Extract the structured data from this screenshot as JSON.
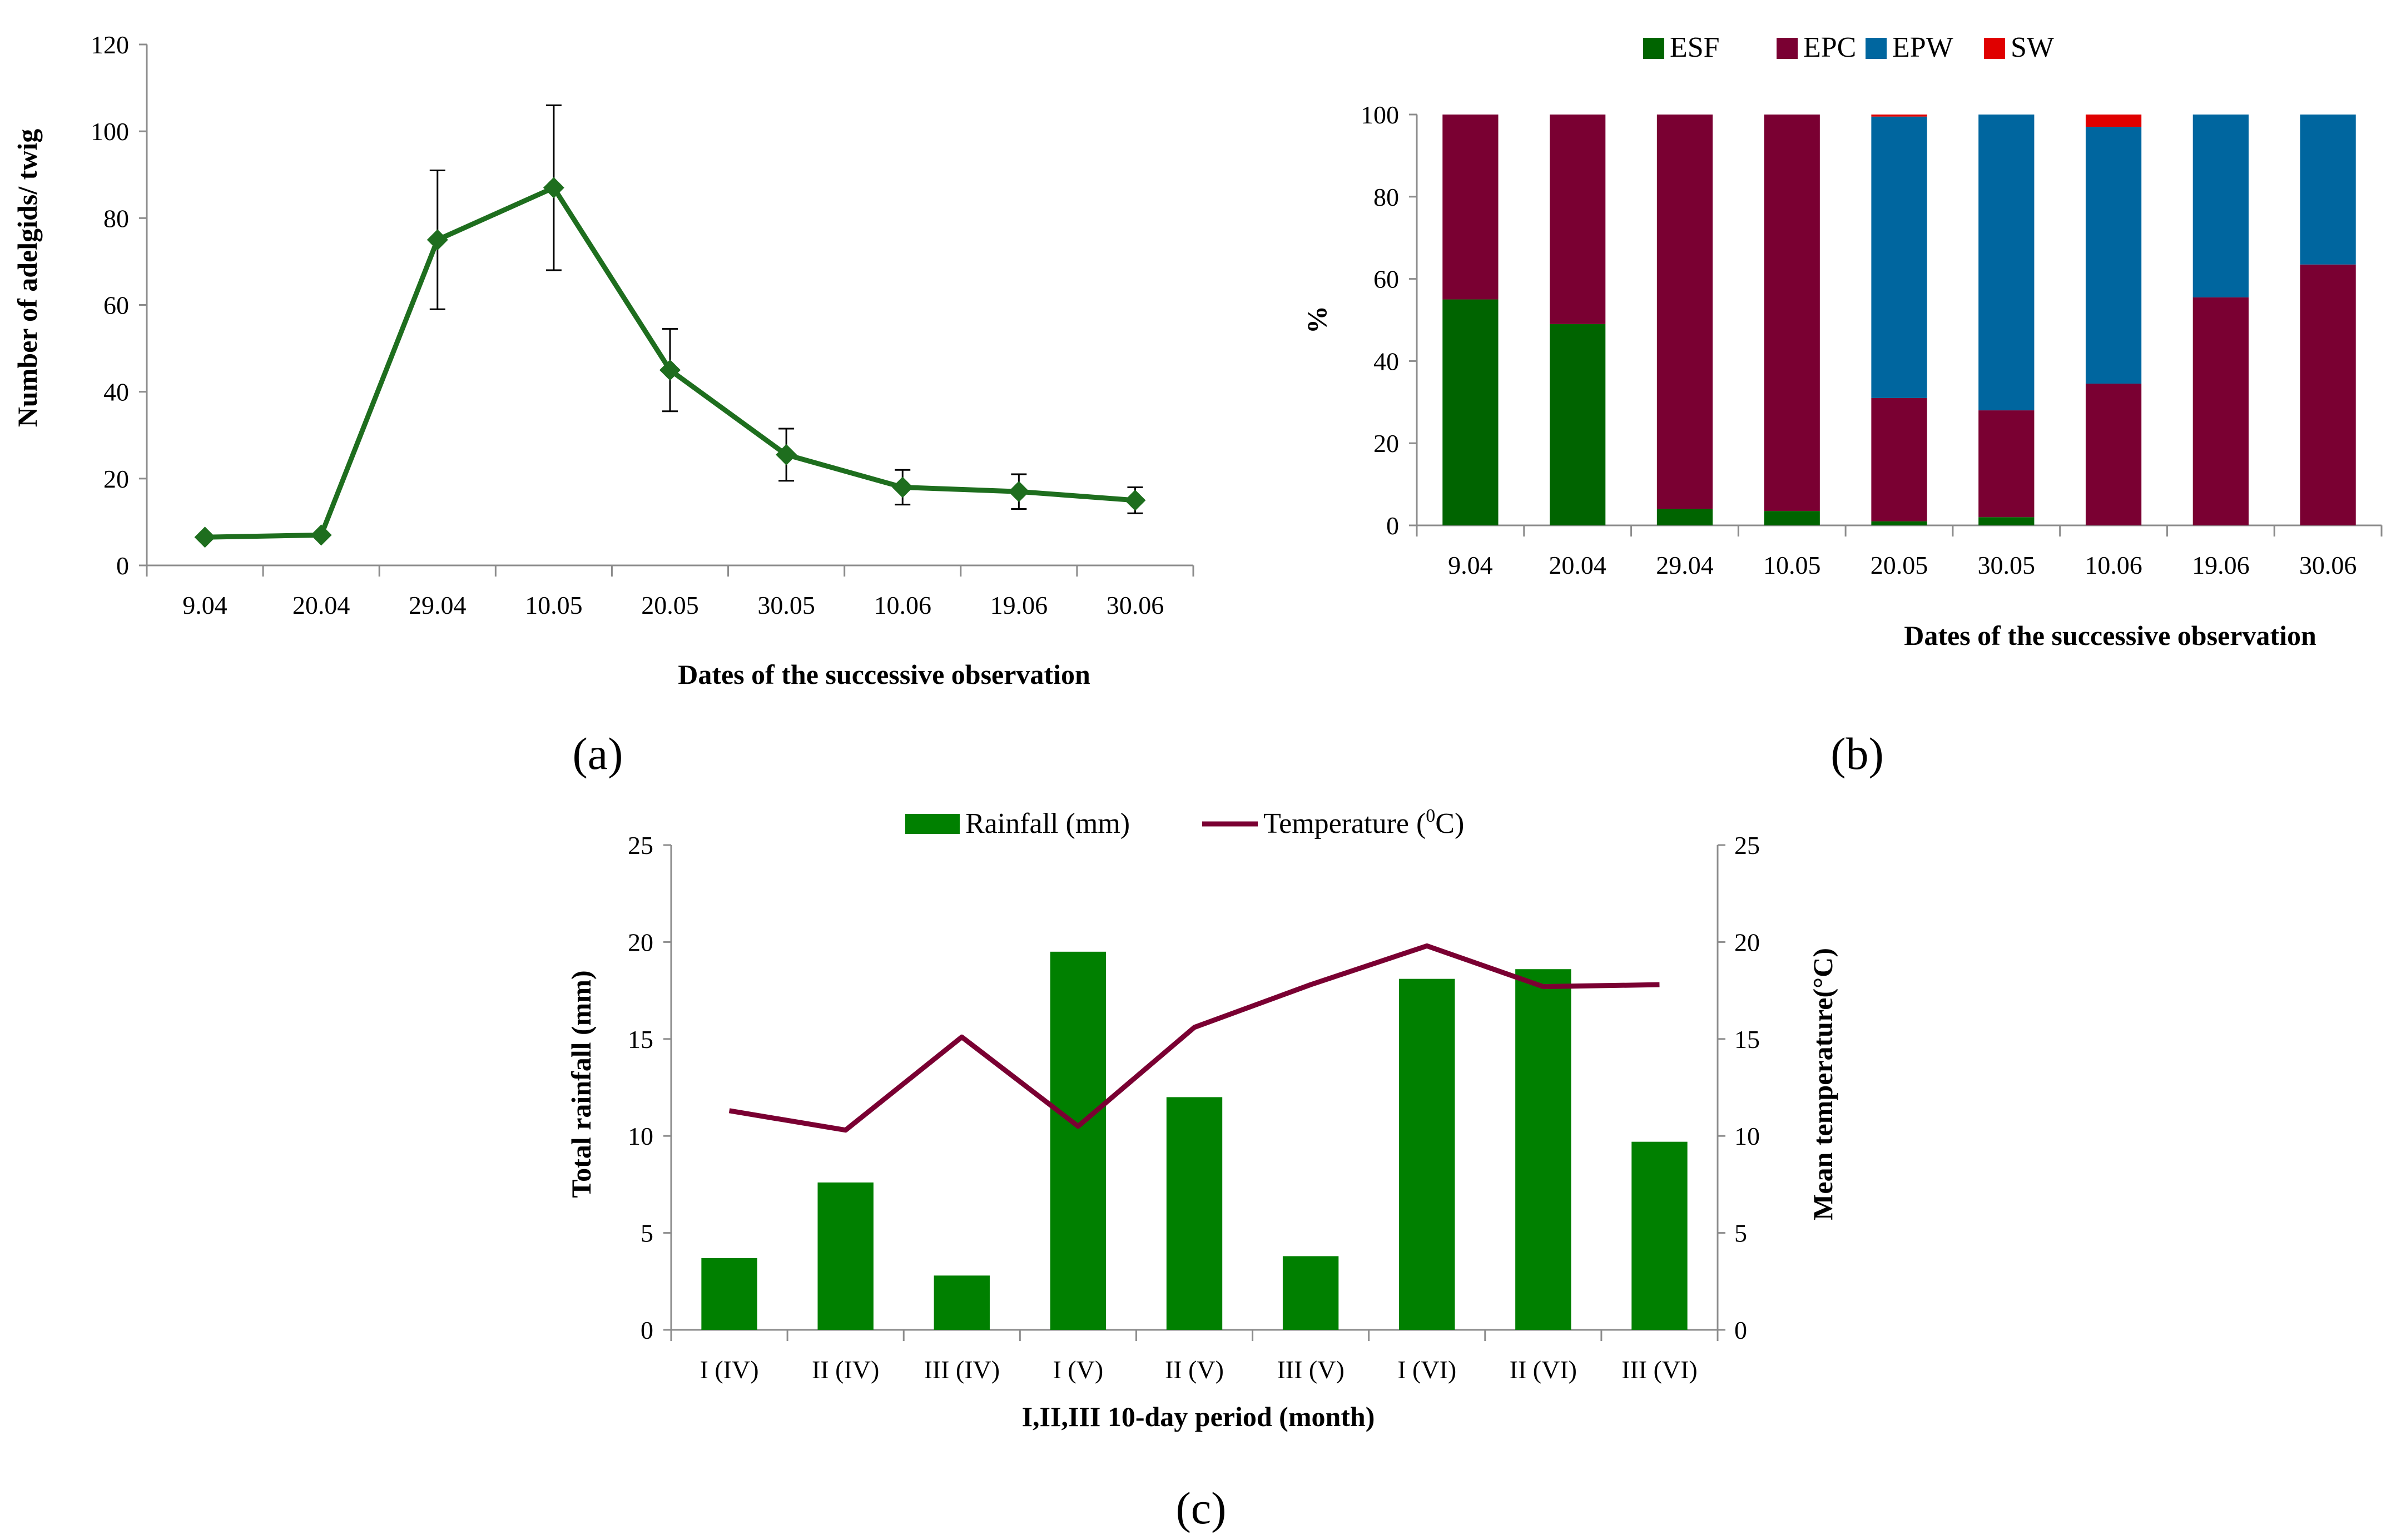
{
  "chart_data": [
    {
      "panel": "(a)",
      "type": "line",
      "title": "",
      "xlabel": "Dates of the successive observation",
      "ylabel": "Number of adelgids/ twig",
      "ylim": [
        0,
        120
      ],
      "yticks": [
        "0",
        "20",
        "40",
        "60",
        "80",
        "100",
        "120"
      ],
      "categories": [
        "9.04",
        "20.04",
        "29.04",
        "10.05",
        "20.05",
        "30.05",
        "10.06",
        "19.06",
        "30.06"
      ],
      "series": [
        {
          "values": [
            6.5,
            7,
            75,
            87,
            45,
            25.5,
            18,
            17,
            15
          ],
          "error": [
            0,
            0,
            16,
            19,
            9.5,
            6,
            4,
            4,
            3
          ],
          "color": "#1e6e1e",
          "marker": "diamond"
        }
      ],
      "grid": false,
      "legend": "none"
    },
    {
      "panel": "(b)",
      "type": "bar",
      "stacked": true,
      "title": "",
      "xlabel": "Dates of the successive observation",
      "ylabel": "%",
      "ylim": [
        0,
        100
      ],
      "yticks": [
        "0",
        "20",
        "40",
        "60",
        "80",
        "100"
      ],
      "categories": [
        "9.04",
        "20.04",
        "29.04",
        "10.05",
        "20.05",
        "30.05",
        "10.06",
        "19.06",
        "30.06"
      ],
      "series": [
        {
          "name": "ESF",
          "color": "#006400",
          "values": [
            55,
            49,
            4,
            3.5,
            1,
            2,
            0,
            0,
            0
          ]
        },
        {
          "name": "EPC",
          "color": "#7a0032",
          "values": [
            45,
            51,
            96,
            96.5,
            30,
            26,
            34.5,
            55.5,
            63.5
          ]
        },
        {
          "name": "EPW",
          "color": "#00669f",
          "values": [
            0,
            0,
            0,
            0,
            68.5,
            72,
            62.5,
            44.5,
            36.5
          ]
        },
        {
          "name": "SW",
          "color": "#e00000",
          "values": [
            0,
            0,
            0,
            0,
            0.5,
            0,
            3,
            0,
            0
          ]
        }
      ],
      "grid": false,
      "legend": "top"
    },
    {
      "panel": "(c)",
      "type": "bar",
      "title": "",
      "xlabel": "I,II,III 10-day period (month)",
      "ylabel": "Total rainfall (mm)",
      "y2label": "Mean temperature(°C)",
      "ylim": [
        0,
        25
      ],
      "y2lim": [
        0,
        25
      ],
      "yticks": [
        "0",
        "5",
        "10",
        "15",
        "20",
        "25"
      ],
      "categories": [
        "I (IV)",
        "II (IV)",
        "III (IV)",
        "I (V)",
        "II (V)",
        "III  (V)",
        "I (VI)",
        "II (VI)",
        "III (VI)"
      ],
      "series": [
        {
          "name": "Rainfall (mm)",
          "type": "bar",
          "axis": "left",
          "color": "#008000",
          "values": [
            3.7,
            7.6,
            2.8,
            19.5,
            12,
            3.8,
            18.1,
            18.6,
            9.7
          ]
        },
        {
          "name": "Temperature (",
          "name_sup": "0",
          "name_tail": "C)",
          "type": "line",
          "axis": "right",
          "color": "#7a0032",
          "values": [
            11.3,
            10.3,
            15.1,
            10.5,
            15.6,
            17.8,
            19.8,
            17.7,
            17.8
          ]
        }
      ],
      "grid": false,
      "legend": "top"
    }
  ]
}
